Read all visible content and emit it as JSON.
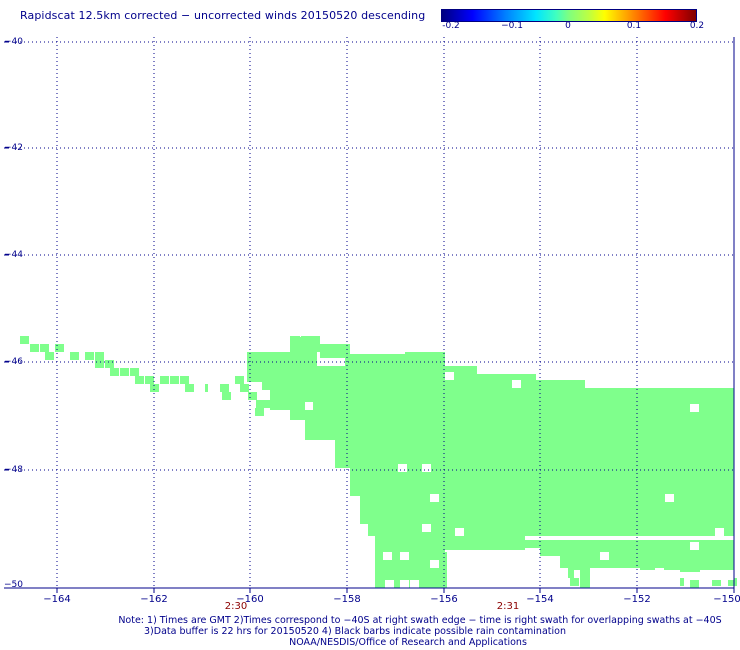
{
  "title": "Rapidscat 12.5km corrected − uncorrected winds 20150520 descending",
  "colorbar": {
    "tick_labels": [
      "-0.2",
      "−0.1",
      "0",
      "0.1",
      "0.2"
    ]
  },
  "map": {
    "swath_color": "#7fff8c",
    "grid_color": "#00008b",
    "lat_labels": [
      "−40",
      "−42",
      "−44",
      "−46",
      "−48",
      "−50"
    ],
    "lon_labels": [
      "−164",
      "−162",
      "−160",
      "−158",
      "−156",
      "−154",
      "−152",
      "−150"
    ],
    "time_labels": [
      "2:30",
      "2:31"
    ]
  },
  "notes": {
    "line1": "Note: 1) Times are GMT 2)Times correspond to −40S at right swath edge − time is right swath for overlapping swaths at −40S",
    "line2": "3)Data buffer is 22 hrs for 20150520 4) Black barbs indicate possible rain contamination",
    "line3": "NOAA/NESDIS/Office of Research and Applications"
  }
}
